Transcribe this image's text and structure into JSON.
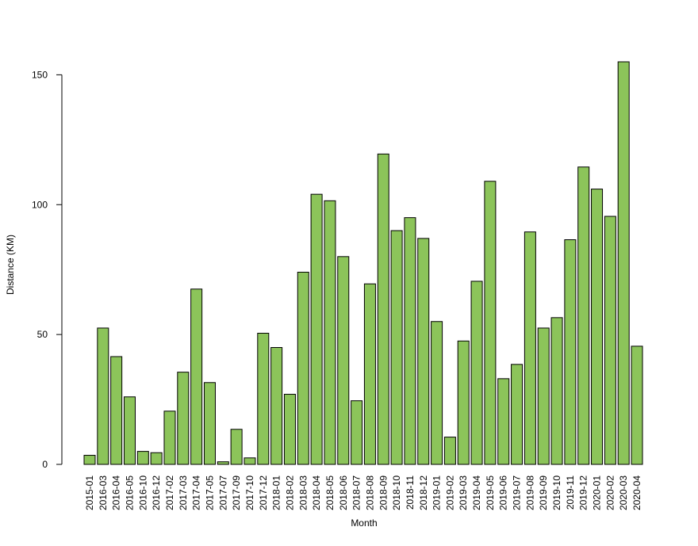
{
  "chart_data": {
    "type": "bar",
    "title": "",
    "xlabel": "Month",
    "ylabel": "Distance (KM)",
    "ylim": [
      0,
      155
    ],
    "yticks": [
      0,
      50,
      100,
      150
    ],
    "grid": false,
    "bar_color": "#8CC45A",
    "bar_stroke": "#000000",
    "categories": [
      "2015-01",
      "2016-03",
      "2016-04",
      "2016-05",
      "2016-10",
      "2016-12",
      "2017-02",
      "2017-03",
      "2017-04",
      "2017-05",
      "2017-07",
      "2017-09",
      "2017-10",
      "2017-12",
      "2018-01",
      "2018-02",
      "2018-03",
      "2018-04",
      "2018-05",
      "2018-06",
      "2018-07",
      "2018-08",
      "2018-09",
      "2018-10",
      "2018-11",
      "2018-12",
      "2019-01",
      "2019-02",
      "2019-03",
      "2019-04",
      "2019-05",
      "2019-06",
      "2019-07",
      "2019-08",
      "2019-09",
      "2019-10",
      "2019-11",
      "2019-12",
      "2020-01",
      "2020-02",
      "2020-03",
      "2020-04"
    ],
    "values": [
      3.5,
      52.5,
      41.5,
      26,
      5,
      4.5,
      20.5,
      35.5,
      67.5,
      31.5,
      1,
      13.5,
      2.5,
      50.5,
      45,
      27,
      74,
      104,
      101.5,
      80,
      24.5,
      69.5,
      119.5,
      90,
      95,
      87,
      55,
      10.5,
      47.5,
      70.5,
      109,
      33,
      38.5,
      89.5,
      52.5,
      56.5,
      86.5,
      114.5,
      106,
      95.5,
      155,
      45.5
    ]
  }
}
